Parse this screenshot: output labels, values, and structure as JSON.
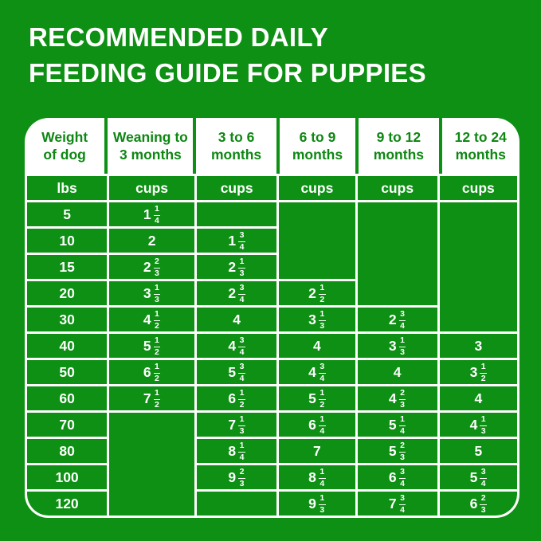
{
  "title": {
    "line1": "RECOMMENDED DAILY",
    "line2": "FEEDING GUIDE FOR PUPPIES"
  },
  "colors": {
    "background_green": "#0D9013",
    "header_text_green": "#0E8713",
    "grid_white": "#FFFFFF"
  },
  "chart_data": {
    "type": "table",
    "title": "RECOMMENDED DAILY FEEDING GUIDE FOR PUPPIES",
    "columns": [
      {
        "header": [
          "Weight",
          "of dog"
        ],
        "unit": "lbs"
      },
      {
        "header": [
          "Weaning to",
          "3 months"
        ],
        "unit": "cups"
      },
      {
        "header": [
          "3 to 6",
          "months"
        ],
        "unit": "cups"
      },
      {
        "header": [
          "6 to 9",
          "months"
        ],
        "unit": "cups"
      },
      {
        "header": [
          "9 to 12",
          "months"
        ],
        "unit": "cups"
      },
      {
        "header": [
          "12 to 24",
          "months"
        ],
        "unit": "cups"
      }
    ],
    "rows": [
      {
        "weight": "5",
        "cells": [
          "1 1/4",
          "",
          {
            "span": 3
          },
          {
            "span": 4
          },
          {
            "span": 5
          }
        ]
      },
      {
        "weight": "10",
        "cells": [
          "2",
          "1 3/4",
          null,
          null,
          null
        ]
      },
      {
        "weight": "15",
        "cells": [
          "2 2/3",
          "2 1/3",
          null,
          null,
          null
        ]
      },
      {
        "weight": "20",
        "cells": [
          "3 1/3",
          "2 3/4",
          "2 1/2",
          null,
          null
        ]
      },
      {
        "weight": "30",
        "cells": [
          "4 1/2",
          "4",
          "3 1/3",
          "2 3/4",
          null
        ]
      },
      {
        "weight": "40",
        "cells": [
          "5 1/2",
          "4 3/4",
          "4",
          "3 1/3",
          "3"
        ]
      },
      {
        "weight": "50",
        "cells": [
          "6 1/2",
          "5 3/4",
          "4 3/4",
          "4",
          "3 1/2"
        ]
      },
      {
        "weight": "60",
        "cells": [
          "7 1/2",
          "6 1/2",
          "5 1/2",
          "4 2/3",
          "4"
        ]
      },
      {
        "weight": "70",
        "cells": [
          {
            "span": 4
          },
          "7 1/3",
          "6 1/4",
          "5 1/4",
          "4 1/3"
        ]
      },
      {
        "weight": "80",
        "cells": [
          null,
          "8 1/4",
          "7",
          "5 2/3",
          "5"
        ]
      },
      {
        "weight": "100",
        "cells": [
          null,
          "9 2/3",
          "8 1/4",
          "6 3/4",
          "5 3/4"
        ]
      },
      {
        "weight": "120",
        "cells": [
          null,
          "",
          "9 1/3",
          "7 3/4",
          "6 2/3"
        ]
      }
    ]
  }
}
